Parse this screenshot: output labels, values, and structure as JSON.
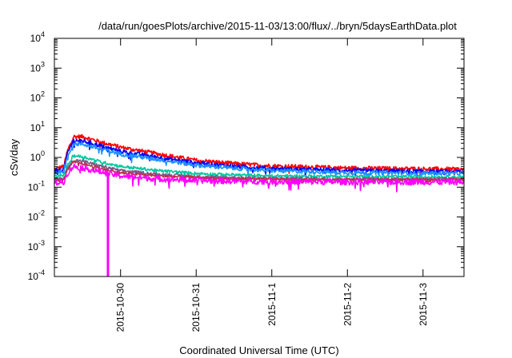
{
  "chart_data": {
    "type": "line",
    "title": "/data/run/goesPlots/archive/2015-11-03/13:00/flux/../bryn/5daysEarthData.plot",
    "xlabel": "Coordinated Universal Time (UTC)",
    "ylabel": "cSv/day",
    "yscale": "log",
    "ylim": [
      0.0001,
      10000
    ],
    "y_ticks": [
      {
        "base": "10",
        "exp": "-4",
        "value": 0.0001
      },
      {
        "base": "10",
        "exp": "-3",
        "value": 0.001
      },
      {
        "base": "10",
        "exp": "-2",
        "value": 0.01
      },
      {
        "base": "10",
        "exp": "-1",
        "value": 0.1
      },
      {
        "base": "10",
        "exp": "0",
        "value": 1
      },
      {
        "base": "10",
        "exp": "1",
        "value": 10
      },
      {
        "base": "10",
        "exp": "2",
        "value": 100
      },
      {
        "base": "10",
        "exp": "3",
        "value": 1000
      },
      {
        "base": "10",
        "exp": "4",
        "value": 10000
      }
    ],
    "xlim": [
      "2015-10-29 03:00",
      "2015-11-03 13:00"
    ],
    "x_ticks": [
      "2015-10-30",
      "2015-10-31",
      "2015-11-1",
      "2015-11-2",
      "2015-11-3"
    ],
    "grid": false,
    "legend": "none",
    "series": [
      {
        "color": "#ff0000",
        "noise": 0.07,
        "points": [
          [
            "2015-10-29 03:00",
            0.4
          ],
          [
            "2015-10-29 06:00",
            0.5
          ],
          [
            "2015-10-29 07:00",
            1.5
          ],
          [
            "2015-10-29 09:00",
            5.0
          ],
          [
            "2015-10-29 12:00",
            5.0
          ],
          [
            "2015-10-29 18:00",
            3.2
          ],
          [
            "2015-10-30 00:00",
            2.2
          ],
          [
            "2015-10-30 12:00",
            1.3
          ],
          [
            "2015-10-31 00:00",
            0.8
          ],
          [
            "2015-10-31 12:00",
            0.62
          ],
          [
            "2015-11-01 00:00",
            0.52
          ],
          [
            "2015-11-02 00:00",
            0.44
          ],
          [
            "2015-11-03 13:00",
            0.4
          ]
        ]
      },
      {
        "color": "#0000ff",
        "noise": 0.07,
        "points": [
          [
            "2015-10-29 03:00",
            0.35
          ],
          [
            "2015-10-29 06:00",
            0.4
          ],
          [
            "2015-10-29 07:00",
            1.2
          ],
          [
            "2015-10-29 09:00",
            3.8
          ],
          [
            "2015-10-29 12:00",
            3.6
          ],
          [
            "2015-10-29 18:00",
            2.4
          ],
          [
            "2015-10-30 00:00",
            1.6
          ],
          [
            "2015-10-30 12:00",
            1.0
          ],
          [
            "2015-10-31 00:00",
            0.65
          ],
          [
            "2015-10-31 12:00",
            0.5
          ],
          [
            "2015-11-01 00:00",
            0.42
          ],
          [
            "2015-11-02 00:00",
            0.36
          ],
          [
            "2015-11-03 13:00",
            0.33
          ]
        ]
      },
      {
        "color": "#1e90ff",
        "noise": 0.07,
        "points": [
          [
            "2015-10-29 03:00",
            0.3
          ],
          [
            "2015-10-29 06:00",
            0.36
          ],
          [
            "2015-10-29 07:00",
            1.0
          ],
          [
            "2015-10-29 09:00",
            2.9
          ],
          [
            "2015-10-29 12:00",
            2.8
          ],
          [
            "2015-10-29 18:00",
            1.9
          ],
          [
            "2015-10-30 00:00",
            1.3
          ],
          [
            "2015-10-30 12:00",
            0.85
          ],
          [
            "2015-10-31 00:00",
            0.55
          ],
          [
            "2015-10-31 12:00",
            0.43
          ],
          [
            "2015-11-01 00:00",
            0.36
          ],
          [
            "2015-11-02 00:00",
            0.31
          ],
          [
            "2015-11-03 13:00",
            0.29
          ]
        ]
      },
      {
        "color": "#00c8a0",
        "noise": 0.05,
        "points": [
          [
            "2015-10-29 03:00",
            0.22
          ],
          [
            "2015-10-29 06:00",
            0.25
          ],
          [
            "2015-10-29 07:00",
            0.5
          ],
          [
            "2015-10-29 09:00",
            1.15
          ],
          [
            "2015-10-29 12:00",
            1.05
          ],
          [
            "2015-10-29 18:00",
            0.7
          ],
          [
            "2015-10-30 00:00",
            0.5
          ],
          [
            "2015-10-30 12:00",
            0.36
          ],
          [
            "2015-10-31 00:00",
            0.29
          ],
          [
            "2015-10-31 12:00",
            0.26
          ],
          [
            "2015-11-01 00:00",
            0.24
          ],
          [
            "2015-11-02 00:00",
            0.23
          ],
          [
            "2015-11-03 13:00",
            0.22
          ]
        ]
      },
      {
        "color": "#7a5a8a",
        "noise": 0.05,
        "points": [
          [
            "2015-10-29 03:00",
            0.18
          ],
          [
            "2015-10-29 06:00",
            0.2
          ],
          [
            "2015-10-29 07:00",
            0.4
          ],
          [
            "2015-10-29 09:00",
            0.8
          ],
          [
            "2015-10-29 12:00",
            0.75
          ],
          [
            "2015-10-29 18:00",
            0.5
          ],
          [
            "2015-10-30 00:00",
            0.36
          ],
          [
            "2015-10-30 12:00",
            0.27
          ],
          [
            "2015-10-31 00:00",
            0.23
          ],
          [
            "2015-10-31 12:00",
            0.21
          ],
          [
            "2015-11-01 00:00",
            0.2
          ],
          [
            "2015-11-02 00:00",
            0.19
          ],
          [
            "2015-11-03 13:00",
            0.19
          ]
        ]
      },
      {
        "color": "#c0304a",
        "noise": 0.04,
        "points": [
          [
            "2015-10-29 03:00",
            0.16
          ],
          [
            "2015-10-29 06:00",
            0.18
          ],
          [
            "2015-10-29 07:00",
            0.35
          ],
          [
            "2015-10-29 09:00",
            0.7
          ],
          [
            "2015-10-29 12:00",
            0.62
          ],
          [
            "2015-10-29 18:00",
            0.42
          ],
          [
            "2015-10-30 00:00",
            0.3
          ],
          [
            "2015-10-30 12:00",
            0.24
          ],
          [
            "2015-10-31 00:00",
            0.21
          ],
          [
            "2015-10-31 12:00",
            0.19
          ],
          [
            "2015-11-01 00:00",
            0.185
          ],
          [
            "2015-11-02 00:00",
            0.18
          ],
          [
            "2015-11-03 13:00",
            0.18
          ]
        ]
      },
      {
        "color": "#ff00ff",
        "noise": 0.1,
        "points": [
          [
            "2015-10-29 03:00",
            0.14
          ],
          [
            "2015-10-29 06:00",
            0.15
          ],
          [
            "2015-10-29 07:00",
            0.28
          ],
          [
            "2015-10-29 09:00",
            0.5
          ],
          [
            "2015-10-29 12:00",
            0.45
          ],
          [
            "2015-10-29 18:00",
            0.32
          ],
          [
            "2015-10-30 00:00",
            0.24
          ],
          [
            "2015-10-30 12:00",
            0.19
          ],
          [
            "2015-10-31 00:00",
            0.17
          ],
          [
            "2015-10-31 12:00",
            0.16
          ],
          [
            "2015-11-01 00:00",
            0.155
          ],
          [
            "2015-11-02 00:00",
            0.15
          ],
          [
            "2015-11-03 13:00",
            0.15
          ]
        ],
        "dropouts": [
          [
            "2015-10-29 20:00",
            0.0001
          ]
        ]
      }
    ]
  }
}
